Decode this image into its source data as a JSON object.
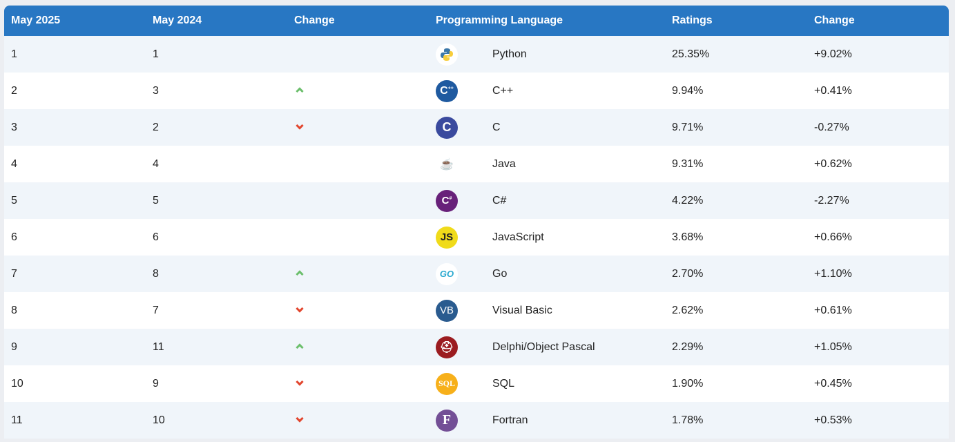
{
  "headers": [
    "May 2025",
    "May 2024",
    "Change",
    "Programming Language",
    "Ratings",
    "Change"
  ],
  "colors": {
    "header": "#2877c3",
    "up": "#6cbf6c",
    "down": "#e2462e"
  },
  "rows": [
    {
      "rank2025": "1",
      "rank2024": "1",
      "trend": "none",
      "icon": "python-icon",
      "language": "Python",
      "rating": "25.35%",
      "change": "+9.02%"
    },
    {
      "rank2025": "2",
      "rank2024": "3",
      "trend": "up",
      "icon": "cpp-icon",
      "language": "C++",
      "rating": "9.94%",
      "change": "+0.41%"
    },
    {
      "rank2025": "3",
      "rank2024": "2",
      "trend": "down",
      "icon": "c-icon",
      "language": "C",
      "rating": "9.71%",
      "change": "-0.27%"
    },
    {
      "rank2025": "4",
      "rank2024": "4",
      "trend": "none",
      "icon": "java-icon",
      "language": "Java",
      "rating": "9.31%",
      "change": "+0.62%"
    },
    {
      "rank2025": "5",
      "rank2024": "5",
      "trend": "none",
      "icon": "csharp-icon",
      "language": "C#",
      "rating": "4.22%",
      "change": "-2.27%"
    },
    {
      "rank2025": "6",
      "rank2024": "6",
      "trend": "none",
      "icon": "javascript-icon",
      "language": "JavaScript",
      "rating": "3.68%",
      "change": "+0.66%"
    },
    {
      "rank2025": "7",
      "rank2024": "8",
      "trend": "up",
      "icon": "go-icon",
      "language": "Go",
      "rating": "2.70%",
      "change": "+1.10%"
    },
    {
      "rank2025": "8",
      "rank2024": "7",
      "trend": "down",
      "icon": "visual-basic-icon",
      "language": "Visual Basic",
      "rating": "2.62%",
      "change": "+0.61%"
    },
    {
      "rank2025": "9",
      "rank2024": "11",
      "trend": "up",
      "icon": "delphi-icon",
      "language": "Delphi/Object Pascal",
      "rating": "2.29%",
      "change": "+1.05%"
    },
    {
      "rank2025": "10",
      "rank2024": "9",
      "trend": "down",
      "icon": "sql-icon",
      "language": "SQL",
      "rating": "1.90%",
      "change": "+0.45%"
    },
    {
      "rank2025": "11",
      "rank2024": "10",
      "trend": "down",
      "icon": "fortran-icon",
      "language": "Fortran",
      "rating": "1.78%",
      "change": "+0.53%"
    }
  ]
}
